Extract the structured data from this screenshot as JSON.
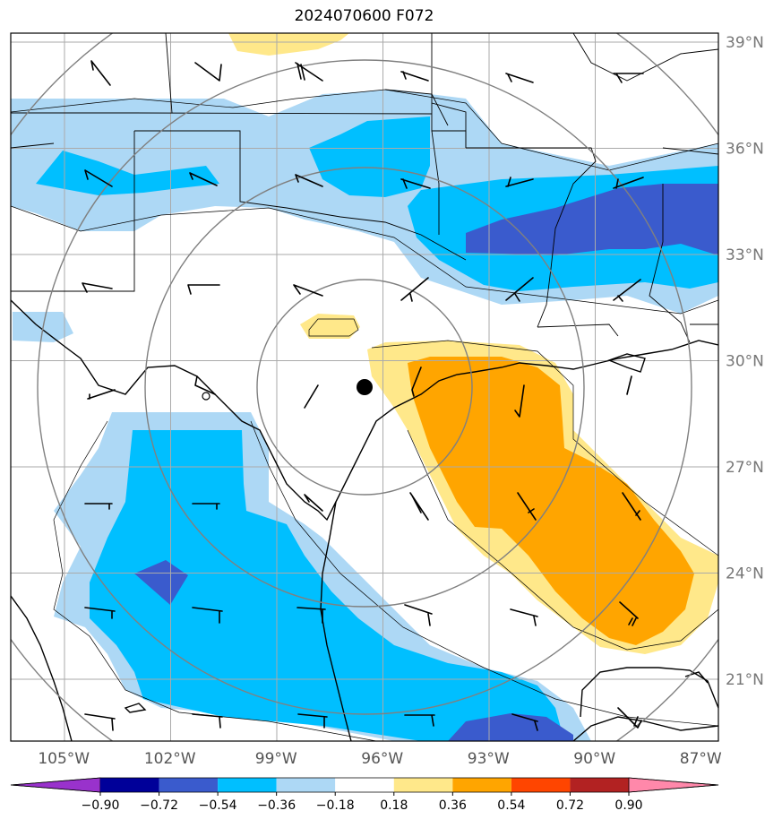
{
  "title": "2024070600 F072",
  "map": {
    "lon_labels": [
      "105°W",
      "102°W",
      "99°W",
      "96°W",
      "93°W",
      "90°W",
      "87°W"
    ],
    "lat_labels": [
      "39°N",
      "36°N",
      "33°N",
      "30°N",
      "27°N",
      "24°N",
      "21°N"
    ],
    "lon_values": [
      -105,
      -102,
      -99,
      -96,
      -93,
      -90,
      -87
    ],
    "lat_values": [
      39,
      36,
      33,
      30,
      27,
      24,
      21
    ],
    "extent": {
      "lon_min": -106.5,
      "lon_max": -86.5,
      "lat_min": 19.25,
      "lat_max": 39.25
    },
    "center_marker": {
      "lon": -96.5,
      "lat": 29.2
    },
    "range_rings": 4
  },
  "colorbar": {
    "ticks": [
      "−0.90",
      "−0.72",
      "−0.54",
      "−0.36",
      "−0.18",
      "0.18",
      "0.36",
      "0.54",
      "0.72",
      "0.90"
    ],
    "levels": [
      -0.9,
      -0.72,
      -0.54,
      -0.36,
      -0.18,
      0.18,
      0.36,
      0.54,
      0.72,
      0.9
    ],
    "colors": [
      "#9932cc",
      "#000099",
      "#3a5bcd",
      "#00bfff",
      "#add8f5",
      "#ffffff",
      "#ffe88a",
      "#ffa500",
      "#ff4500",
      "#b22222",
      "#ff88aa"
    ]
  }
}
